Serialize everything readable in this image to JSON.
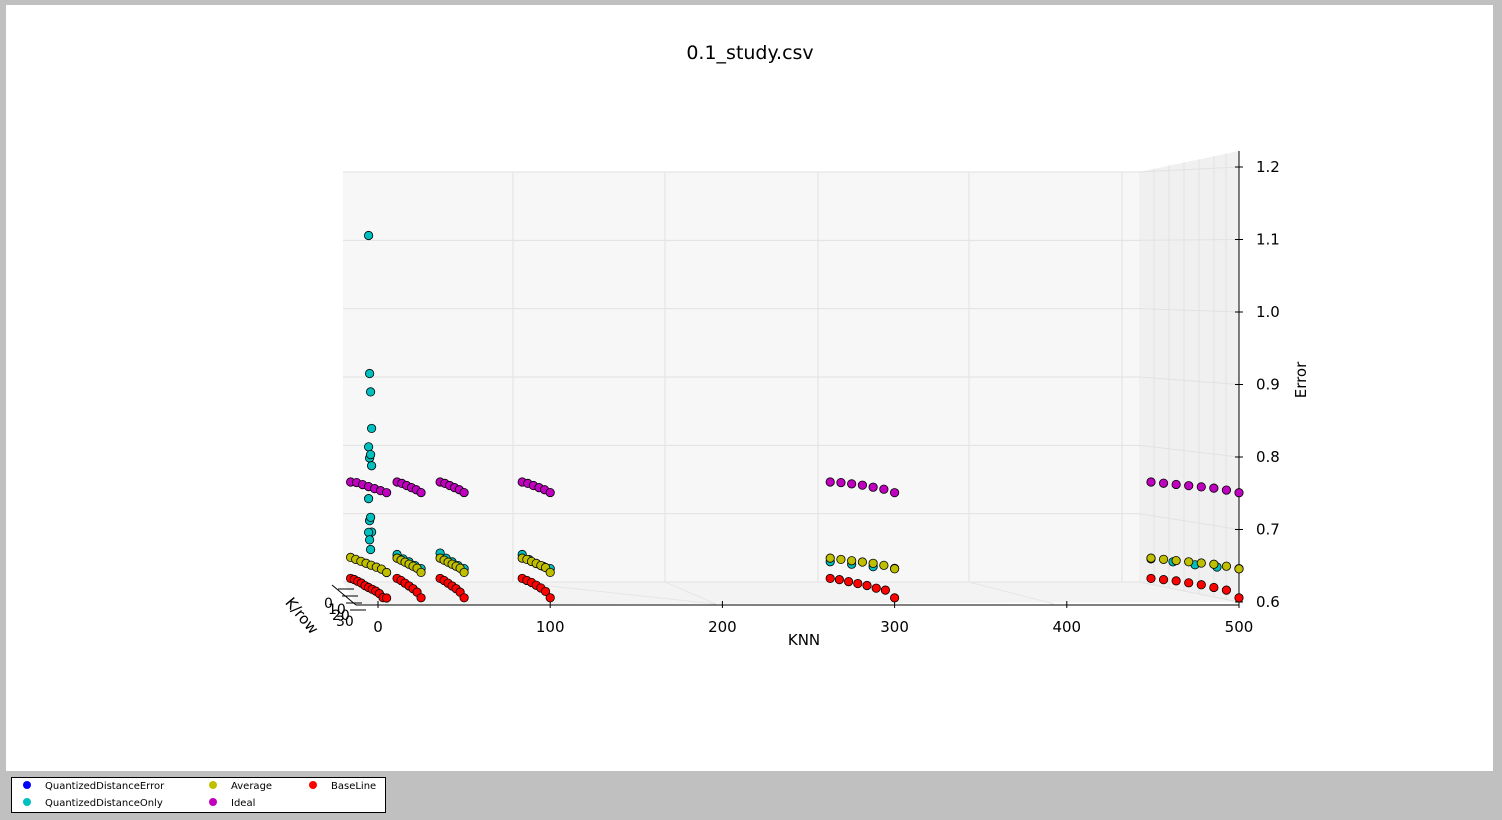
{
  "chart_data": {
    "type": "scatter3d",
    "title": "0.1_study.csv",
    "xlabel": "KNN",
    "ylabel": "K/row",
    "zlabel": "Error",
    "xlim": [
      0,
      500
    ],
    "zlim": [
      0.6,
      1.2
    ],
    "x_ticks": [
      "0",
      "100",
      "200",
      "300",
      "400",
      "500"
    ],
    "y_ticks": [
      "0",
      "10",
      "20",
      "30"
    ],
    "z_ticks": [
      "0.6",
      "0.7",
      "0.8",
      "0.9",
      "1.0",
      "1.1",
      "1.2"
    ],
    "grid": true,
    "legend_position": "bottom-left",
    "knn_values": [
      5,
      25,
      50,
      100,
      300,
      500
    ],
    "series": [
      {
        "name": "QuantizedDistanceError",
        "color": "#0000ff",
        "note": "values not visible"
      },
      {
        "name": "QuantizedDistanceOnly",
        "color": "#00bfbf",
        "knn_groups": [
          {
            "knn": 5,
            "errors": [
              1.1,
              0.91,
              0.885,
              0.835,
              0.81,
              0.795,
              0.8,
              0.785,
              0.74,
              0.71,
              0.715,
              0.695,
              0.695,
              0.685,
              0.672
            ]
          },
          {
            "knn": 25,
            "errors": [
              0.66,
              0.655,
              0.652,
              0.648,
              0.645
            ]
          },
          {
            "knn": 50,
            "errors": [
              0.662,
              0.656,
              0.652,
              0.648,
              0.645
            ]
          },
          {
            "knn": 100,
            "errors": [
              0.66,
              0.654,
              0.65,
              0.647,
              0.645
            ]
          },
          {
            "knn": 300,
            "errors": [
              0.65,
              0.648,
              0.646,
              0.645
            ]
          },
          {
            "knn": 500,
            "errors": [
              0.654,
              0.651,
              0.648,
              0.646,
              0.645
            ]
          }
        ]
      },
      {
        "name": "Average",
        "color": "#bfbf00",
        "knn_groups": [
          {
            "knn": 5,
            "errors": [
              0.656,
              0.654,
              0.652,
              0.65,
              0.648,
              0.646,
              0.644,
              0.64
            ]
          },
          {
            "knn": 25,
            "errors": [
              0.655,
              0.653,
              0.651,
              0.649,
              0.647,
              0.645,
              0.64
            ]
          },
          {
            "knn": 50,
            "errors": [
              0.655,
              0.653,
              0.651,
              0.649,
              0.647,
              0.645,
              0.64
            ]
          },
          {
            "knn": 100,
            "errors": [
              0.655,
              0.654,
              0.652,
              0.65,
              0.648,
              0.646,
              0.64
            ]
          },
          {
            "knn": 300,
            "errors": [
              0.655,
              0.654,
              0.653,
              0.652,
              0.651,
              0.649,
              0.645
            ]
          },
          {
            "knn": 500,
            "errors": [
              0.655,
              0.654,
              0.653,
              0.652,
              0.651,
              0.65,
              0.648,
              0.645
            ]
          }
        ]
      },
      {
        "name": "Ideal",
        "color": "#bf00bf",
        "knn_groups": [
          {
            "knn": 5,
            "errors": [
              0.76,
              0.76,
              0.758,
              0.756,
              0.754,
              0.752,
              0.75
            ]
          },
          {
            "knn": 25,
            "errors": [
              0.76,
              0.759,
              0.757,
              0.755,
              0.753,
              0.75
            ]
          },
          {
            "knn": 50,
            "errors": [
              0.76,
              0.759,
              0.757,
              0.755,
              0.753,
              0.75
            ]
          },
          {
            "knn": 100,
            "errors": [
              0.76,
              0.759,
              0.757,
              0.755,
              0.753,
              0.75
            ]
          },
          {
            "knn": 300,
            "errors": [
              0.76,
              0.76,
              0.759,
              0.758,
              0.756,
              0.754,
              0.75
            ]
          },
          {
            "knn": 500,
            "errors": [
              0.76,
              0.759,
              0.758,
              0.757,
              0.756,
              0.755,
              0.753,
              0.75
            ]
          }
        ]
      },
      {
        "name": "BaseLine",
        "color": "#ff0000",
        "knn_groups": [
          {
            "knn": 5,
            "errors": [
              0.627,
              0.626,
              0.624,
              0.622,
              0.619,
              0.617,
              0.615,
              0.613,
              0.61,
              0.605,
              0.605
            ]
          },
          {
            "knn": 25,
            "errors": [
              0.627,
              0.625,
              0.622,
              0.619,
              0.616,
              0.612,
              0.605
            ]
          },
          {
            "knn": 50,
            "errors": [
              0.627,
              0.625,
              0.622,
              0.619,
              0.616,
              0.612,
              0.605
            ]
          },
          {
            "knn": 100,
            "errors": [
              0.627,
              0.625,
              0.623,
              0.62,
              0.617,
              0.613,
              0.605
            ]
          },
          {
            "knn": 300,
            "errors": [
              0.627,
              0.626,
              0.624,
              0.622,
              0.62,
              0.617,
              0.615,
              0.605
            ]
          },
          {
            "knn": 500,
            "errors": [
              0.627,
              0.626,
              0.625,
              0.623,
              0.621,
              0.618,
              0.615,
              0.605
            ]
          }
        ]
      }
    ]
  }
}
